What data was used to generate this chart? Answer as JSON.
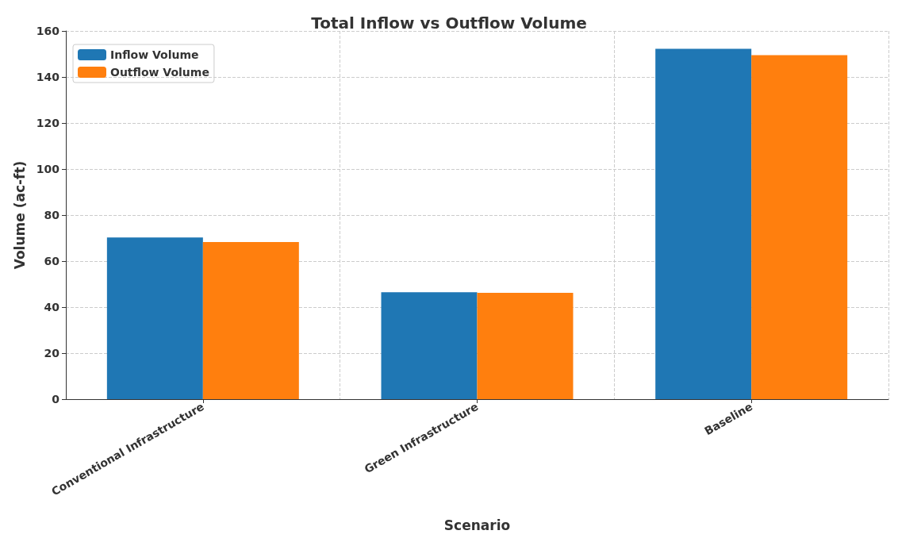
{
  "chart_data": {
    "type": "bar",
    "title": "Total Inflow vs Outflow Volume",
    "xlabel": "Scenario",
    "ylabel": "Volume (ac-ft)",
    "categories": [
      "Conventional Infrastructure",
      "Green Infrastructure",
      "Baseline"
    ],
    "series": [
      {
        "name": "Inflow Volume",
        "color": "#1f77b4",
        "values": [
          70.3,
          46.5,
          152.2
        ]
      },
      {
        "name": "Outflow Volume",
        "color": "#ff7f0e",
        "values": [
          68.3,
          46.2,
          149.5
        ]
      }
    ],
    "ylim": [
      0,
      160
    ],
    "yticks": [
      0,
      20,
      40,
      60,
      80,
      100,
      120,
      140,
      160
    ],
    "grid": true,
    "legend": "top left"
  }
}
